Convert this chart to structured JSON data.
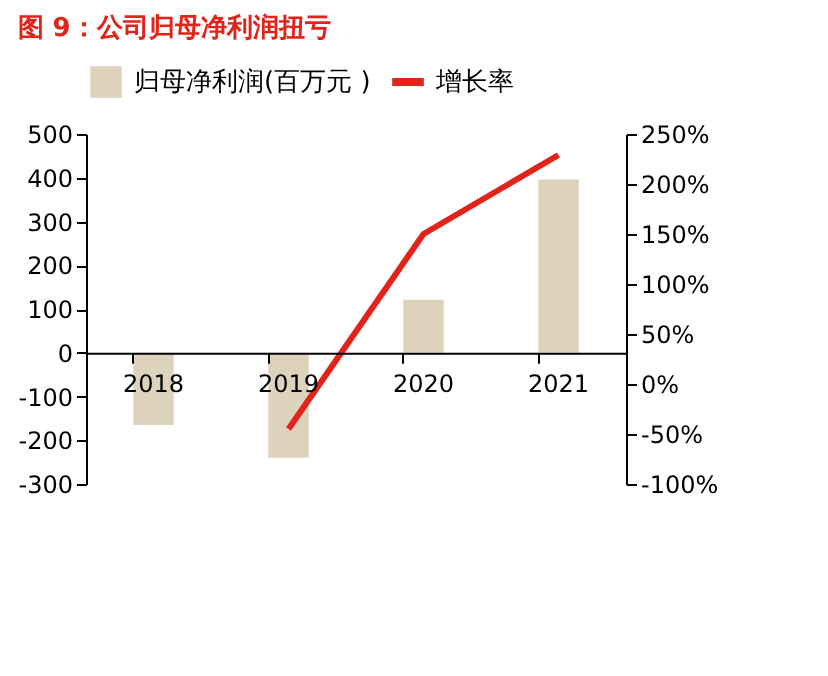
{
  "chart_data": {
    "type": "bar",
    "title": "图 9：公司归母净利润扭亏",
    "categories": [
      "2018",
      "2019",
      "2020",
      "2021"
    ],
    "series": [
      {
        "name": "归母净利润(百万元 )",
        "color": "#ddd3bc",
        "values": [
          -165,
          -240,
          121,
          396
        ]
      },
      {
        "name": "增长率",
        "type": "line",
        "axis": "y2",
        "color": "#e2231a",
        "values": [
          null,
          -45,
          150,
          229
        ]
      }
    ],
    "ylim": [
      -300,
      500
    ],
    "yticks": [
      -300,
      -200,
      -100,
      0,
      100,
      200,
      300,
      400,
      500
    ],
    "y2lim": [
      -100,
      250
    ],
    "y2ticks": [
      {
        "value": -100,
        "label": "-100%"
      },
      {
        "value": -50,
        "label": "-50%"
      },
      {
        "value": 0,
        "label": "0%"
      },
      {
        "value": 50,
        "label": "50%"
      },
      {
        "value": 100,
        "label": "100%"
      },
      {
        "value": 150,
        "label": "150%"
      },
      {
        "value": 200,
        "label": "200%"
      },
      {
        "value": 250,
        "label": "250%"
      }
    ],
    "grid": false,
    "legend": "top",
    "marker": "none",
    "line_style": "solid"
  }
}
